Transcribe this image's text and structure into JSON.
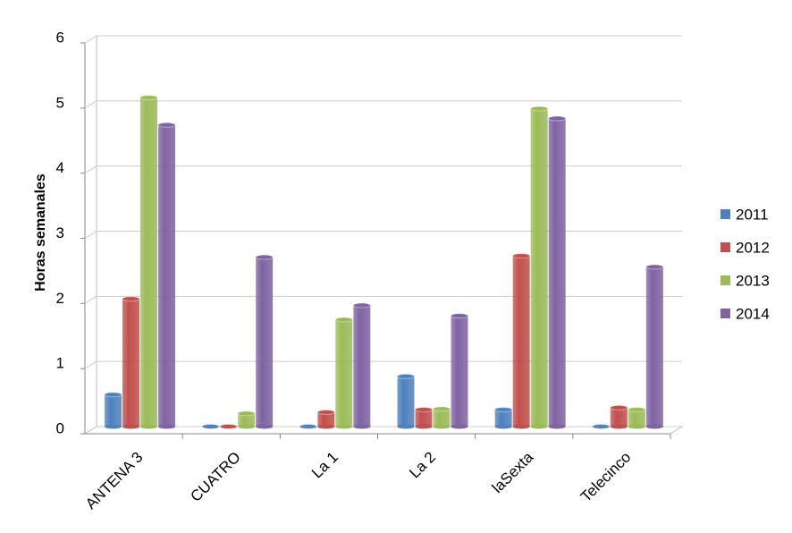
{
  "chart_data": {
    "type": "bar",
    "y_label": "Horas semanales",
    "categories": [
      "ANTENA 3",
      "CUATRO",
      "La 1",
      "La 2",
      "laSexta",
      "Telecinco"
    ],
    "series": [
      {
        "name": "2011",
        "color": "#4f81bd",
        "values": [
          0.49,
          0,
          0,
          0.77,
          0.26,
          0
        ]
      },
      {
        "name": "2012",
        "color": "#c0504d",
        "values": [
          1.96,
          0,
          0.22,
          0.26,
          2.62,
          0.29
        ]
      },
      {
        "name": "2013",
        "color": "#9bbb59",
        "values": [
          5.05,
          0.2,
          1.64,
          0.27,
          4.88,
          0.26
        ]
      },
      {
        "name": "2014",
        "color": "#8064a2",
        "values": [
          4.63,
          2.6,
          1.86,
          1.7,
          4.73,
          2.45
        ]
      }
    ],
    "ylim": [
      0,
      6
    ],
    "yticks": [
      0,
      1,
      2,
      3,
      4,
      5,
      6
    ],
    "grid": true,
    "legend": "right"
  }
}
